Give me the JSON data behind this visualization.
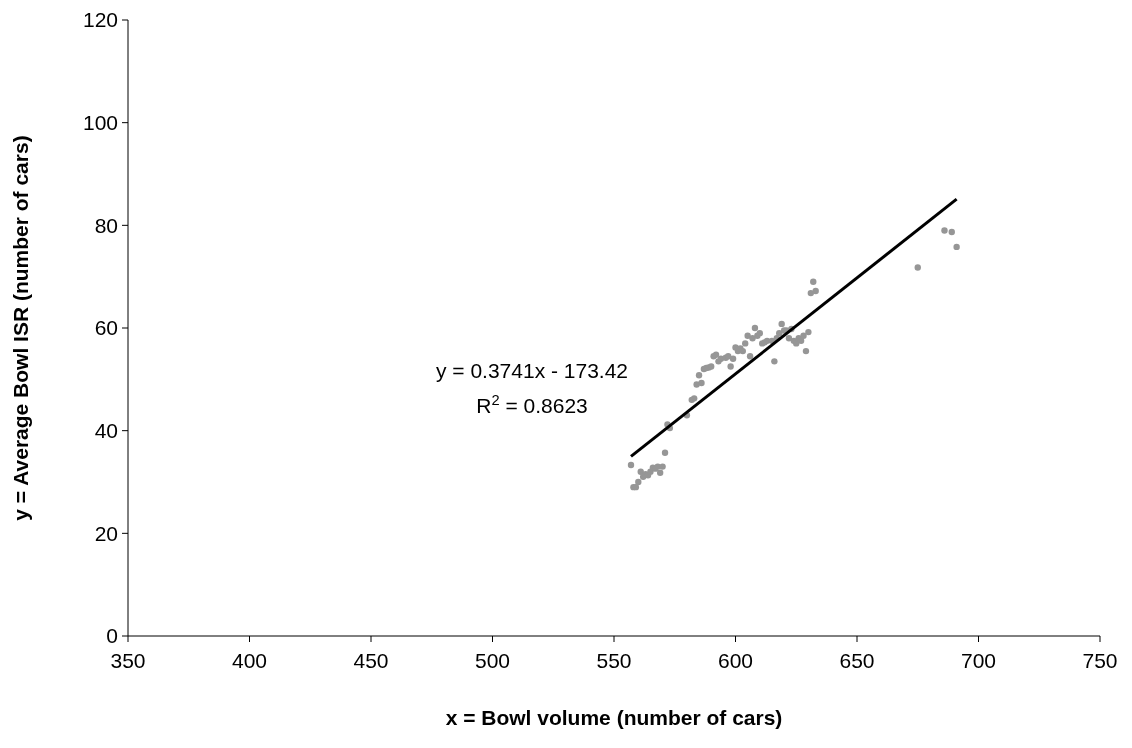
{
  "chart_data": {
    "type": "scatter",
    "xlabel": "x = Bowl volume (number of cars)",
    "ylabel": "y = Average Bowl ISR (number of cars)",
    "xlim": [
      350,
      750
    ],
    "xticks": [
      350,
      400,
      450,
      500,
      550,
      600,
      650,
      700,
      750
    ],
    "ylim": [
      0,
      120
    ],
    "yticks": [
      0,
      20,
      40,
      60,
      80,
      100,
      120
    ],
    "grid": false,
    "annotations": [
      "y = 0.3741x - 173.42",
      "R$^{2}$ = 0.8623"
    ],
    "series": [
      {
        "color": "#969696",
        "marker": "circle",
        "x": [
          557,
          558,
          559,
          560,
          561,
          562,
          563,
          564,
          565,
          566,
          567,
          568,
          569,
          570,
          571,
          572,
          573,
          580,
          582,
          583,
          584,
          585,
          586,
          587,
          588,
          589,
          590,
          591,
          592,
          593,
          594,
          596,
          597,
          598,
          599,
          600,
          601,
          602,
          603,
          604,
          605,
          606,
          607,
          608,
          609,
          610,
          611,
          612,
          613,
          615,
          616,
          617,
          618,
          619,
          620,
          621,
          622,
          623,
          624,
          625,
          626,
          627,
          628,
          629,
          630,
          631,
          632,
          633,
          675,
          686,
          689,
          691
        ],
        "values": [
          33.3,
          29,
          29,
          30,
          32,
          31,
          31.5,
          31.3,
          32,
          32.8,
          32.6,
          33,
          31.8,
          33,
          35.7,
          41.2,
          40.5,
          43,
          46,
          46.3,
          49,
          50.8,
          49.3,
          52,
          52.2,
          52.3,
          52.5,
          54.5,
          54.8,
          53.5,
          54,
          54.2,
          54.5,
          52.5,
          54,
          56.2,
          55.5,
          56,
          55.5,
          57,
          58.5,
          54.5,
          58,
          60,
          58.5,
          59,
          57,
          57.2,
          57.5,
          57.5,
          53.5,
          58,
          59,
          60.8,
          59.5,
          59.5,
          58,
          59.8,
          57.5,
          57,
          58,
          57.5,
          58.5,
          55.5,
          59.2,
          66.8,
          69,
          67.2,
          71.8,
          79,
          78.7,
          75.8
        ]
      },
      {
        "type": "line",
        "color": "#000000",
        "x": [
          557,
          691
        ],
        "values": [
          35,
          85.1
        ],
        "line_style": "solid"
      }
    ]
  }
}
